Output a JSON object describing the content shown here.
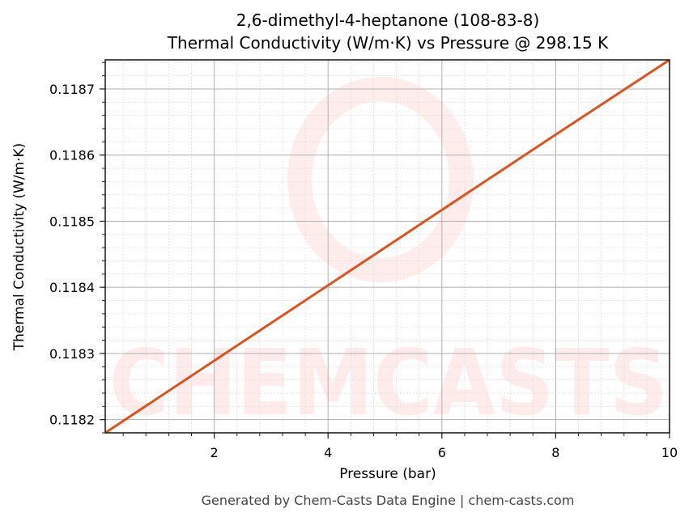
{
  "title": {
    "line1": "2,6-dimethyl-4-heptanone (108-83-8)",
    "line2": "Thermal Conductivity (W/m·K) vs Pressure @ 298.15 K"
  },
  "axes": {
    "xlabel": "Pressure (bar)",
    "ylabel": "Thermal Conductivity (W/m·K)"
  },
  "footer": "Generated by Chem-Casts Data Engine | chem-casts.com",
  "watermark": "CHEMCASTS",
  "colors": {
    "line": "#d9541e",
    "grid_major": "#b0b0b0",
    "grid_minor": "#dddddd",
    "watermark": "#ff3b2f"
  },
  "chart_data": {
    "type": "line",
    "title": "2,6-dimethyl-4-heptanone (108-83-8) Thermal Conductivity (W/m·K) vs Pressure @ 298.15 K",
    "xlabel": "Pressure (bar)",
    "ylabel": "Thermal Conductivity (W/m·K)",
    "xlim": [
      0.085,
      10
    ],
    "ylim": [
      0.11818,
      0.118744
    ],
    "xticks": [
      2,
      4,
      6,
      8,
      10
    ],
    "yticks": [
      0.1182,
      0.1183,
      0.1184,
      0.1185,
      0.1186,
      0.1187
    ],
    "xtick_labels": [
      "2",
      "4",
      "6",
      "8",
      "10"
    ],
    "ytick_labels": [
      "0.1182",
      "0.1183",
      "0.1184",
      "0.1185",
      "0.1186",
      "0.1187"
    ],
    "grid": true,
    "minor_grid": true,
    "legend": null,
    "series": [
      {
        "name": "Thermal Conductivity",
        "x": [
          0.085,
          2,
          4,
          6,
          8,
          10
        ],
        "y": [
          0.11818,
          0.118289,
          0.118403,
          0.118517,
          0.118631,
          0.118744
        ]
      }
    ]
  }
}
